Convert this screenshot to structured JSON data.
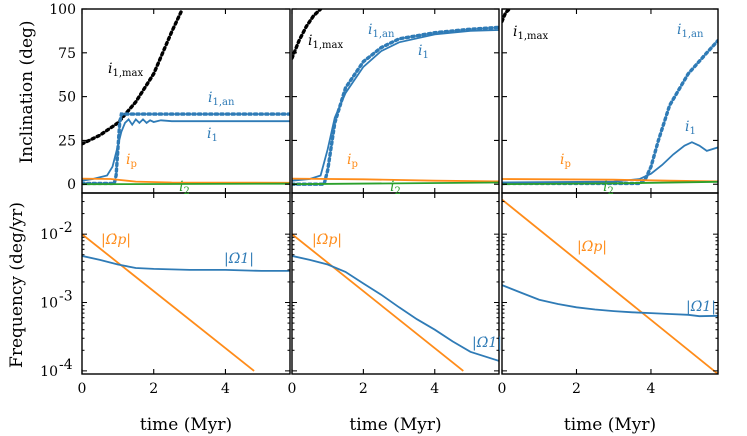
{
  "colors": {
    "blue": "#2f7bb6",
    "orange": "#ff8c1a",
    "green": "#2ca02c",
    "black": "#000000"
  },
  "chart_data": {
    "type": "line",
    "layout": "2 rows x 3 columns, shared x axis",
    "xlabel": "time (Myr)",
    "xlim": [
      0,
      5.8
    ],
    "xticks": [
      0,
      2,
      4
    ],
    "xtick_labels": [
      "0",
      "2",
      "4"
    ],
    "top_row": {
      "ylabel": "Inclination (deg)",
      "ylim": [
        -5,
        100
      ],
      "yticks": [
        0,
        25,
        50,
        75,
        100
      ],
      "ytick_labels": [
        "0",
        "25",
        "50",
        "75",
        "100"
      ]
    },
    "bottom_row": {
      "ylabel": "Frequency (deg/yr)",
      "yscale": "log",
      "ylim": [
        9e-05,
        0.04
      ],
      "yticks": [
        0.0001,
        0.001,
        0.01
      ],
      "ytick_labels": [
        "10^-4",
        "10^-3",
        "10^-2"
      ]
    },
    "panels": [
      {
        "column": 1,
        "inclination": [
          {
            "name": "i1,max",
            "label_main": "i",
            "label_sub": "1,max",
            "color": "black",
            "dash": "dotted",
            "x": [
              0,
              0.5,
              1.0,
              1.5,
              2.0,
              2.5,
              2.8
            ],
            "y": [
              23,
              28,
              35,
              47,
              63,
              87,
              100
            ]
          },
          {
            "name": "i1,an",
            "label_main": "i",
            "label_sub": "1,an",
            "color": "blue",
            "dash": "dotted",
            "x": [
              0,
              0.9,
              0.95,
              1.0,
              1.05,
              1.1,
              5.8
            ],
            "y": [
              0.5,
              0.5,
              5,
              20,
              35,
              40,
              40
            ]
          },
          {
            "name": "i1",
            "label_main": "i",
            "label_sub": "1",
            "color": "blue",
            "dash": "solid",
            "x": [
              0,
              0.3,
              0.5,
              0.7,
              0.85,
              1.0,
              1.1,
              1.2,
              1.3,
              1.4,
              1.5,
              1.6,
              1.7,
              1.8,
              1.9,
              2.0,
              2.2,
              2.5,
              3.0,
              4.0,
              5.8
            ],
            "y": [
              2,
              3,
              4,
              5,
              10,
              22,
              30,
              35,
              37,
              34,
              37,
              35,
              37,
              35,
              36.5,
              35.5,
              36.5,
              36,
              36,
              36,
              36
            ]
          },
          {
            "name": "ip",
            "label_main": "i",
            "label_sub": "p",
            "color": "orange",
            "dash": "solid",
            "x": [
              0,
              0.8,
              1.5,
              2.5,
              5.8
            ],
            "y": [
              3.2,
              3.0,
              1.5,
              1.0,
              0.8
            ]
          },
          {
            "name": "i2",
            "label_main": "i",
            "label_sub": "2",
            "color": "green",
            "dash": "solid",
            "x": [
              0,
              5.8
            ],
            "y": [
              0,
              0.3
            ]
          }
        ],
        "frequency": [
          {
            "name": "Omega_p",
            "label": "|Ω̇p|",
            "color": "orange",
            "x": [
              0,
              4.8
            ],
            "y": [
              0.01,
              0.0001
            ]
          },
          {
            "name": "Omega_1",
            "label": "|Ω̇1|",
            "color": "blue",
            "x": [
              0,
              0.5,
              1.0,
              1.5,
              2.0,
              3.0,
              4.0,
              5.0,
              5.8
            ],
            "y": [
              0.0048,
              0.0042,
              0.0036,
              0.0032,
              0.0031,
              0.003,
              0.003,
              0.0029,
              0.0029
            ]
          }
        ]
      },
      {
        "column": 2,
        "inclination": [
          {
            "name": "i1,max",
            "label_main": "i",
            "label_sub": "1,max",
            "color": "black",
            "dash": "dotted",
            "x": [
              0,
              0.2,
              0.4,
              0.6,
              0.8
            ],
            "y": [
              72,
              82,
              90,
              96,
              100
            ]
          },
          {
            "name": "i1,an",
            "label_main": "i",
            "label_sub": "1,an",
            "color": "blue",
            "dash": "dotted",
            "x": [
              0,
              0.9,
              1.0,
              1.2,
              1.5,
              2.0,
              2.5,
              3.0,
              4.0,
              5.0,
              5.8
            ],
            "y": [
              0,
              0,
              8,
              35,
              55,
              70,
              78,
              83,
              86.5,
              88.5,
              89.5
            ]
          },
          {
            "name": "i1",
            "label_main": "i",
            "label_sub": "1",
            "color": "blue",
            "dash": "solid",
            "x": [
              0,
              0.5,
              0.8,
              1.0,
              1.2,
              1.5,
              2.0,
              2.5,
              3.0,
              4.0,
              5.0,
              5.8
            ],
            "y": [
              2,
              3,
              5,
              20,
              38,
              52,
              67,
              76,
              81,
              85.5,
              87.5,
              88
            ]
          },
          {
            "name": "ip",
            "label_main": "i",
            "label_sub": "p",
            "color": "orange",
            "dash": "solid",
            "x": [
              0,
              2.0,
              4.0,
              5.8
            ],
            "y": [
              3.2,
              2.8,
              2.0,
              1.6
            ]
          },
          {
            "name": "i2",
            "label_main": "i",
            "label_sub": "2",
            "color": "green",
            "dash": "solid",
            "x": [
              0,
              5.8
            ],
            "y": [
              0,
              1.0
            ]
          }
        ],
        "frequency": [
          {
            "name": "Omega_p",
            "label": "|Ω̇p|",
            "color": "orange",
            "x": [
              0,
              4.8
            ],
            "y": [
              0.01,
              0.0001
            ]
          },
          {
            "name": "Omega_1",
            "label": "|Ω̇1|",
            "color": "blue",
            "x": [
              0,
              0.5,
              1.0,
              1.5,
              2.0,
              2.5,
              3.0,
              3.5,
              4.0,
              4.5,
              5.0,
              5.8
            ],
            "y": [
              0.0048,
              0.0042,
              0.0036,
              0.0028,
              0.0019,
              0.0013,
              0.00085,
              0.00057,
              0.0004,
              0.00027,
              0.00019,
              0.00014
            ]
          }
        ]
      },
      {
        "column": 3,
        "inclination": [
          {
            "name": "i1,max",
            "label_main": "i",
            "label_sub": "1,max",
            "color": "black",
            "dash": "dotted",
            "x": [
              0,
              0.1,
              0.2
            ],
            "y": [
              93,
              98,
              100
            ]
          },
          {
            "name": "i1,an",
            "label_main": "i",
            "label_sub": "1,an",
            "color": "blue",
            "dash": "dotted",
            "x": [
              0,
              3.7,
              3.85,
              4.0,
              4.2,
              4.5,
              5.0,
              5.5,
              5.8
            ],
            "y": [
              0.5,
              0.5,
              3,
              10,
              25,
              45,
              63,
              75,
              82
            ]
          },
          {
            "name": "i1",
            "label_main": "i",
            "label_sub": "1",
            "color": "blue",
            "dash": "solid",
            "x": [
              0,
              3.0,
              3.7,
              4.0,
              4.3,
              4.6,
              4.9,
              5.1,
              5.3,
              5.5,
              5.8
            ],
            "y": [
              1,
              1.5,
              3,
              6,
              11,
              17,
              22,
              24,
              22,
              19,
              21
            ]
          },
          {
            "name": "ip",
            "label_main": "i",
            "label_sub": "p",
            "color": "orange",
            "dash": "solid",
            "x": [
              0,
              3.0,
              4.5,
              5.8
            ],
            "y": [
              3,
              2.6,
              2.0,
              1.6
            ]
          },
          {
            "name": "i2",
            "label_main": "i",
            "label_sub": "2",
            "color": "green",
            "dash": "solid",
            "x": [
              0,
              3.0,
              5.8
            ],
            "y": [
              0,
              0.5,
              1.4
            ]
          }
        ],
        "frequency": [
          {
            "name": "Omega_p",
            "label": "|Ω̇p|",
            "color": "orange",
            "x": [
              0,
              5.8
            ],
            "y": [
              0.032,
              9e-05
            ]
          },
          {
            "name": "Omega_1",
            "label": "|Ω̇1|",
            "color": "blue",
            "x": [
              0,
              0.5,
              1.0,
              1.5,
              2.0,
              2.5,
              3.0,
              3.5,
              4.0,
              4.5,
              5.0,
              5.3,
              5.8
            ],
            "y": [
              0.0018,
              0.0014,
              0.0011,
              0.00095,
              0.00085,
              0.00079,
              0.00075,
              0.00072,
              0.0007,
              0.00068,
              0.00066,
              0.00063,
              0.00064
            ]
          }
        ]
      }
    ]
  }
}
